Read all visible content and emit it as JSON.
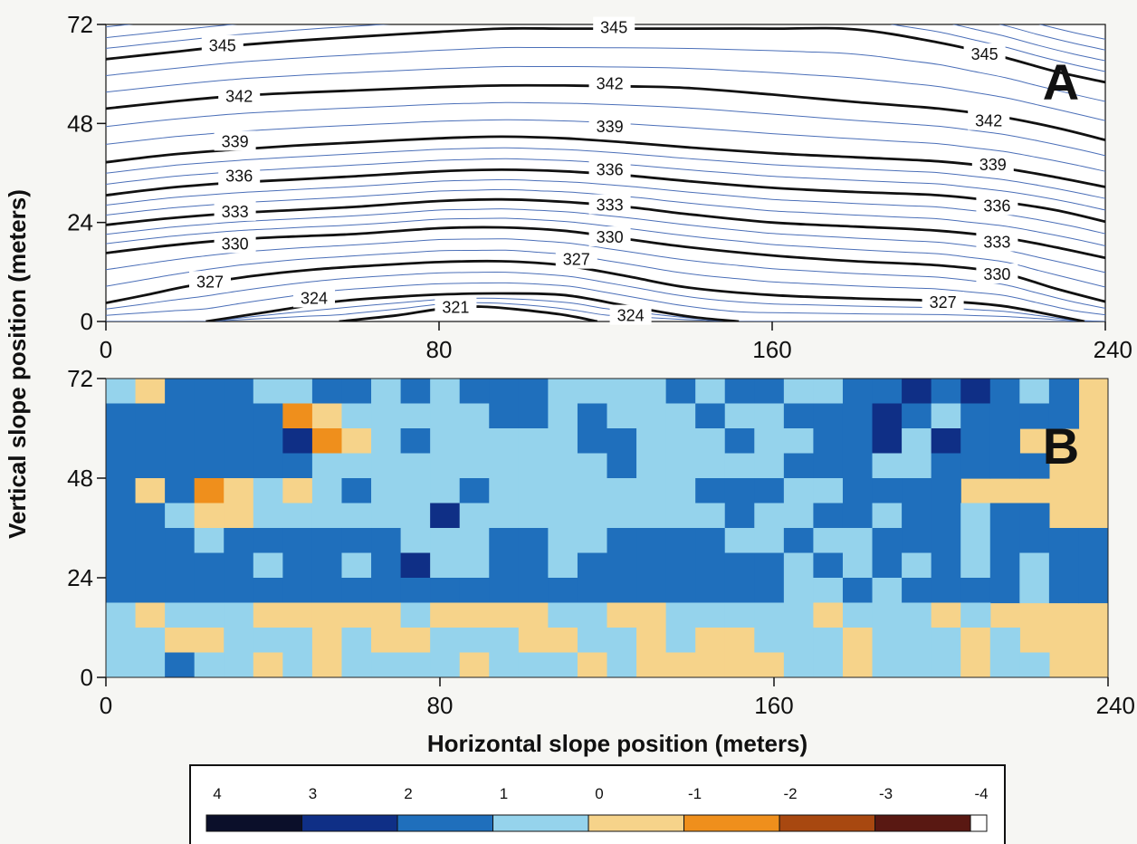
{
  "figure": {
    "ylabel": "Vertical slope position (meters)",
    "xlabel": "Horizontal slope position (meters)"
  },
  "chart_data": [
    {
      "type": "contour",
      "panel_label": "A",
      "xlim": [
        0,
        240
      ],
      "ylim": [
        0,
        72
      ],
      "x_ticks": [
        "0",
        "80",
        "160",
        "240"
      ],
      "y_ticks": [
        "0",
        "24",
        "48",
        "72"
      ],
      "contour_interval": 1,
      "labeled_interval": 3,
      "levels": [
        {
          "value": 321,
          "label": "321",
          "points": [
            [
              56,
              0
            ],
            [
              70,
              1.5
            ],
            [
              80,
              3
            ],
            [
              90,
              3.6
            ],
            [
              100,
              2.8
            ],
            [
              110,
              1.6
            ],
            [
              118,
              0
            ]
          ]
        },
        {
          "value": 324,
          "label": "324",
          "points": [
            [
              24,
              0
            ],
            [
              40,
              2.5
            ],
            [
              55,
              4.8
            ],
            [
              70,
              6
            ],
            [
              82,
              6.6
            ],
            [
              95,
              6.8
            ],
            [
              110,
              6.4
            ],
            [
              125,
              3.8
            ],
            [
              140,
              1.2
            ],
            [
              152,
              0
            ]
          ]
        },
        {
          "value": 327,
          "label": "327",
          "points": [
            [
              0,
              4.5
            ],
            [
              10,
              6.5
            ],
            [
              20,
              8.6
            ],
            [
              35,
              11
            ],
            [
              50,
              12.6
            ],
            [
              65,
              13.6
            ],
            [
              80,
              14.4
            ],
            [
              95,
              14.6
            ],
            [
              110,
              13.6
            ],
            [
              125,
              11
            ],
            [
              140,
              8.2
            ],
            [
              160,
              6.4
            ],
            [
              180,
              5.6
            ],
            [
              200,
              5
            ],
            [
              215,
              3.8
            ],
            [
              228,
              1.4
            ],
            [
              235,
              0
            ]
          ]
        },
        {
          "value": 330,
          "label": "330",
          "points": [
            [
              0,
              16.6
            ],
            [
              15,
              18.4
            ],
            [
              30,
              19.8
            ],
            [
              45,
              20.6
            ],
            [
              60,
              21.2
            ],
            [
              80,
              22.6
            ],
            [
              95,
              22.8
            ],
            [
              110,
              22
            ],
            [
              125,
              20
            ],
            [
              140,
              18
            ],
            [
              160,
              16
            ],
            [
              180,
              14.6
            ],
            [
              200,
              13.6
            ],
            [
              215,
              11.8
            ],
            [
              228,
              8
            ],
            [
              240,
              4.8
            ]
          ]
        },
        {
          "value": 333,
          "label": "333",
          "points": [
            [
              0,
              23.4
            ],
            [
              15,
              25
            ],
            [
              30,
              26.2
            ],
            [
              45,
              27
            ],
            [
              60,
              27.8
            ],
            [
              80,
              29.2
            ],
            [
              95,
              29.6
            ],
            [
              110,
              29
            ],
            [
              125,
              27.8
            ],
            [
              140,
              26
            ],
            [
              160,
              24
            ],
            [
              180,
              23
            ],
            [
              200,
              22
            ],
            [
              215,
              20.4
            ],
            [
              228,
              18
            ],
            [
              240,
              15.4
            ]
          ]
        },
        {
          "value": 336,
          "label": "336",
          "points": [
            [
              0,
              30.6
            ],
            [
              15,
              32.4
            ],
            [
              30,
              33.6
            ],
            [
              45,
              34.4
            ],
            [
              60,
              35.2
            ],
            [
              80,
              36.4
            ],
            [
              95,
              36.8
            ],
            [
              110,
              36.4
            ],
            [
              125,
              35.4
            ],
            [
              140,
              34
            ],
            [
              160,
              32.4
            ],
            [
              180,
              31.4
            ],
            [
              200,
              30.6
            ],
            [
              215,
              29
            ],
            [
              228,
              27
            ],
            [
              240,
              24.2
            ]
          ]
        },
        {
          "value": 339,
          "label": "339",
          "points": [
            [
              0,
              38.6
            ],
            [
              15,
              40.4
            ],
            [
              30,
              41.6
            ],
            [
              45,
              42.6
            ],
            [
              60,
              43.4
            ],
            [
              80,
              44.4
            ],
            [
              95,
              44.8
            ],
            [
              110,
              44.4
            ],
            [
              125,
              43.4
            ],
            [
              140,
              42.2
            ],
            [
              160,
              40.8
            ],
            [
              180,
              39.8
            ],
            [
              200,
              38.8
            ],
            [
              215,
              37.2
            ],
            [
              228,
              35
            ],
            [
              240,
              32.6
            ]
          ]
        },
        {
          "value": 342,
          "label": "342",
          "points": [
            [
              0,
              51.6
            ],
            [
              15,
              53.2
            ],
            [
              30,
              54.6
            ],
            [
              45,
              55.4
            ],
            [
              60,
              56
            ],
            [
              80,
              56.8
            ],
            [
              95,
              57.2
            ],
            [
              110,
              57.2
            ],
            [
              125,
              57
            ],
            [
              140,
              56.6
            ],
            [
              160,
              55
            ],
            [
              180,
              53.2
            ],
            [
              200,
              51.6
            ],
            [
              215,
              49.6
            ],
            [
              228,
              47
            ],
            [
              240,
              44
            ]
          ]
        },
        {
          "value": 345,
          "label": "345",
          "points": [
            [
              0,
              63.6
            ],
            [
              15,
              65.2
            ],
            [
              30,
              66.8
            ],
            [
              45,
              68
            ],
            [
              60,
              69
            ],
            [
              80,
              70.2
            ],
            [
              95,
              71
            ],
            [
              110,
              71
            ],
            [
              125,
              71
            ],
            [
              140,
              71
            ],
            [
              160,
              71
            ],
            [
              180,
              70.8
            ],
            [
              200,
              67.6
            ],
            [
              215,
              64.2
            ],
            [
              228,
              60.6
            ],
            [
              240,
              58
            ]
          ]
        }
      ],
      "level_labels": [
        {
          "text": "345",
          "x": 28,
          "y": 66.8
        },
        {
          "text": "345",
          "x": 122,
          "y": 71.2
        },
        {
          "text": "345",
          "x": 211,
          "y": 64.8
        },
        {
          "text": "342",
          "x": 32,
          "y": 54.6
        },
        {
          "text": "342",
          "x": 121,
          "y": 57.6
        },
        {
          "text": "342",
          "x": 212,
          "y": 48.6
        },
        {
          "text": "339",
          "x": 31,
          "y": 43.6
        },
        {
          "text": "339",
          "x": 121,
          "y": 47.2
        },
        {
          "text": "339",
          "x": 213,
          "y": 38
        },
        {
          "text": "336",
          "x": 32,
          "y": 35.2
        },
        {
          "text": "336",
          "x": 121,
          "y": 36.8
        },
        {
          "text": "336",
          "x": 214,
          "y": 28
        },
        {
          "text": "333",
          "x": 31,
          "y": 26.6
        },
        {
          "text": "333",
          "x": 121,
          "y": 28.2
        },
        {
          "text": "333",
          "x": 214,
          "y": 19.2
        },
        {
          "text": "330",
          "x": 31,
          "y": 18.8
        },
        {
          "text": "330",
          "x": 121,
          "y": 20.4
        },
        {
          "text": "330",
          "x": 214,
          "y": 11.4
        },
        {
          "text": "327",
          "x": 25,
          "y": 9.6
        },
        {
          "text": "327",
          "x": 113,
          "y": 15
        },
        {
          "text": "327",
          "x": 201,
          "y": 4.6
        },
        {
          "text": "324",
          "x": 50,
          "y": 5.6
        },
        {
          "text": "324",
          "x": 126,
          "y": 1.4
        },
        {
          "text": "321",
          "x": 84,
          "y": 3.4
        }
      ]
    },
    {
      "type": "heatmap",
      "panel_label": "B",
      "xlim": [
        0,
        240
      ],
      "ylim": [
        0,
        72
      ],
      "x_ticks": [
        "0",
        "80",
        "160",
        "240"
      ],
      "y_ticks": [
        "0",
        "24",
        "48",
        "72"
      ],
      "rows_top_to_bottom": [
        "0-11110011010111000010110011212101",
        "111111-2-10000011010001001112101111",
        "1111112-2-10100000110001001120211",
        "11111110000000000100000111001111",
        "1-11-2-10-10100010000000111001111",
        "110-1-1000000200000000010011011011",
        "1110111111000110011110010011101111",
        "1111101101200110111111101010101011",
        "1111111111111111111111100101111011",
        "0-1000-1-1-1-1-10-1-1-1-100-1-100000-1000-10",
        "00-1-1000-10-1-1000-1-100-10-1-1000-1000-10",
        "00100-10-10000-1000-10-1-1-1-1-100-1000-100"
      ],
      "grid_note": "0 = 0 class, 1 = 0-1 light blue class, -1 = 0 to -1 tan class",
      "colorbar": {
        "ticks": [
          "4",
          "3",
          "2",
          "1",
          "0",
          "-1",
          "-2",
          "-3",
          "-4"
        ],
        "colors": [
          "#0b0f2a",
          "#0f2f86",
          "#1f6fbc",
          "#95d3ec",
          "#f6d38a",
          "#ef8f1c",
          "#a84810",
          "#591812",
          "#ffffff"
        ]
      }
    }
  ]
}
